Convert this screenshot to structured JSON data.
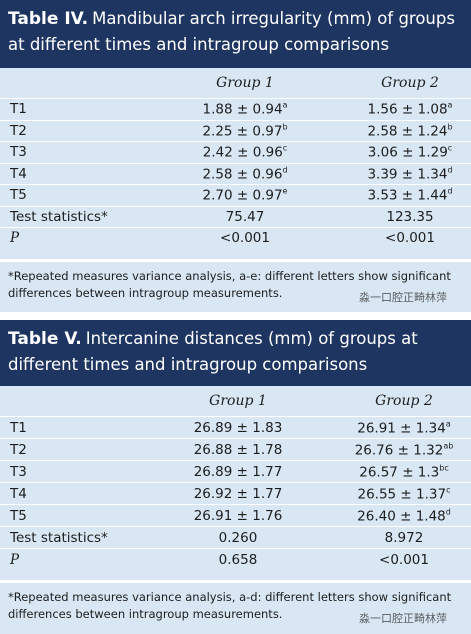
{
  "tables": [
    {
      "label": "Table IV.",
      "title": "Mandibular arch irregularity (mm) of groups at different times and intragroup comparisons",
      "columns": [
        "Group 1",
        "Group 2"
      ],
      "rows": [
        {
          "label": "T1",
          "cells": [
            {
              "text": "1.88 ± 0.94",
              "sup": "a"
            },
            {
              "text": "1.56 ± 1.08",
              "sup": "a"
            }
          ]
        },
        {
          "label": "T2",
          "cells": [
            {
              "text": "2.25 ± 0.97",
              "sup": "b"
            },
            {
              "text": "2.58 ± 1.24",
              "sup": "b"
            }
          ]
        },
        {
          "label": "T3",
          "cells": [
            {
              "text": "2.42 ± 0.96",
              "sup": "c"
            },
            {
              "text": "3.06 ± 1.29",
              "sup": "c"
            }
          ]
        },
        {
          "label": "T4",
          "cells": [
            {
              "text": "2.58 ± 0.96",
              "sup": "d"
            },
            {
              "text": "3.39 ± 1.34",
              "sup": "d"
            }
          ]
        },
        {
          "label": "T5",
          "cells": [
            {
              "text": "2.70 ± 0.97",
              "sup": "e"
            },
            {
              "text": "3.53 ± 1.44",
              "sup": "d"
            }
          ]
        },
        {
          "label": "Test statistics*",
          "cells": [
            {
              "text": "75.47"
            },
            {
              "text": "123.35"
            }
          ]
        },
        {
          "label": "P",
          "cells": [
            {
              "text": "<0.001"
            },
            {
              "text": "<0.001"
            }
          ]
        }
      ],
      "footnote": "*Repeated measures variance analysis, a-e: different letters show significant differences between intragroup measurements.",
      "watermark": "淼一口腔正畸林萍"
    },
    {
      "label": "Table V.",
      "title": "Intercanine distances (mm) of groups at different times and intragroup comparisons",
      "columns": [
        "Group 1",
        "Group 2"
      ],
      "rows": [
        {
          "label": "T1",
          "cells": [
            {
              "text": "26.89 ± 1.83"
            },
            {
              "text": "26.91 ± 1.34",
              "sup": "a"
            }
          ]
        },
        {
          "label": "T2",
          "cells": [
            {
              "text": "26.88 ± 1.78"
            },
            {
              "text": "26.76 ± 1.32",
              "sup": "ab"
            }
          ]
        },
        {
          "label": "T3",
          "cells": [
            {
              "text": "26.89 ± 1.77"
            },
            {
              "text": "26.57 ± 1.3",
              "sup": "bc"
            }
          ]
        },
        {
          "label": "T4",
          "cells": [
            {
              "text": "26.92 ± 1.77"
            },
            {
              "text": "26.55 ± 1.37",
              "sup": "c"
            }
          ]
        },
        {
          "label": "T5",
          "cells": [
            {
              "text": "26.91 ± 1.76"
            },
            {
              "text": "26.40 ± 1.48",
              "sup": "d"
            }
          ]
        },
        {
          "label": "Test statistics*",
          "cells": [
            {
              "text": "0.260"
            },
            {
              "text": "8.972"
            }
          ]
        },
        {
          "label": "P",
          "cells": [
            {
              "text": "0.658"
            },
            {
              "text": "<0.001"
            }
          ]
        }
      ],
      "footnote": "*Repeated measures variance analysis, a-d: different letters show significant differences between intragroup measurements.",
      "watermark": "淼一口腔正畸林萍"
    }
  ]
}
